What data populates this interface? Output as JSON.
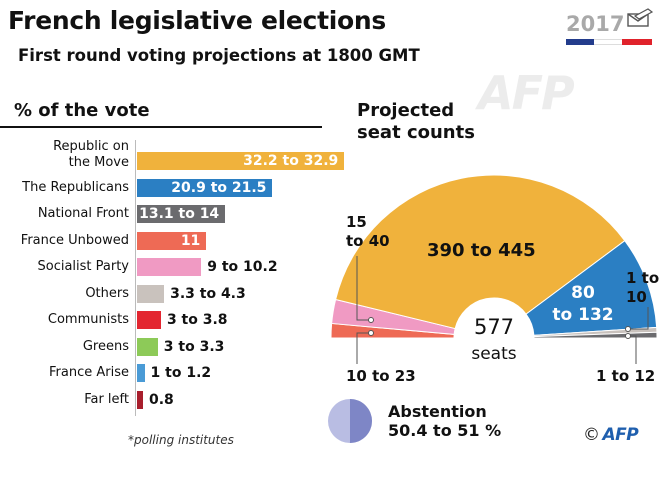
{
  "header": {
    "title": "French legislative elections",
    "subtitle": "First round voting projections at 1800 GMT",
    "logo_year": "2017",
    "watermark": "AFP"
  },
  "colors": {
    "orange": "#f0b23c",
    "blue": "#2b7fc3",
    "darkgrey": "#6b6b6e",
    "salmon": "#ee6a55",
    "pink": "#f09ac3",
    "lightgrey": "#c9c2bd",
    "red": "#e32630",
    "green": "#8dca58",
    "lightblue": "#4a9bd6",
    "darkred": "#a81e2c",
    "abstention": "#8088c9",
    "flag_blue": "#233c8c",
    "flag_red": "#e0222b"
  },
  "vote_section": {
    "title": "% of the vote",
    "footnote": "*polling institutes"
  },
  "seat_section": {
    "title_line1": "Projected",
    "title_line2": "seat counts",
    "total": "577",
    "unit": "seats"
  },
  "abstention": {
    "label": "Abstention",
    "value": "50.4 to 51 %",
    "low": 50.4,
    "high": 51
  },
  "credit": {
    "copyright": "©",
    "agency": "AFP"
  },
  "chart_data": [
    {
      "type": "bar",
      "title": "% of the vote",
      "categories": [
        "Republic on the Move",
        "The Republicans",
        "National Front",
        "France Unbowed",
        "Socialist Party",
        "Others",
        "Communists",
        "Greens",
        "France Arise",
        "Far left"
      ],
      "label_lines": [
        [
          "Republic on",
          "the Move"
        ],
        [
          "The Republicans"
        ],
        [
          "National Front"
        ],
        [
          "France Unbowed"
        ],
        [
          "Socialist Party"
        ],
        [
          "Others"
        ],
        [
          "Communists"
        ],
        [
          "Greens"
        ],
        [
          "France Arise"
        ],
        [
          "Far left"
        ]
      ],
      "series": [
        {
          "name": "",
          "low": [
            32.2,
            20.9,
            13.1,
            11,
            9,
            3.3,
            3,
            3,
            1,
            0.8
          ],
          "high": [
            32.9,
            21.5,
            14,
            11,
            10.2,
            4.3,
            3.8,
            3.3,
            1.2,
            0.8
          ]
        }
      ],
      "value_labels": [
        "32.2 to 32.9",
        "20.9 to 21.5",
        "13.1 to 14",
        "11",
        "9 to 10.2",
        "3.3 to 4.3",
        "3 to 3.8",
        "3 to 3.3",
        "1 to 1.2",
        "0.8"
      ],
      "bar_colors": [
        "orange",
        "blue",
        "darkgrey",
        "salmon",
        "pink",
        "lightgrey",
        "red",
        "green",
        "lightblue",
        "darkred"
      ]
    },
    {
      "type": "pie",
      "subtype": "semicircle",
      "title": "Projected seat counts",
      "total": 577,
      "slices": [
        {
          "low": 10,
          "high": 23,
          "label": "10 to 23",
          "color": "salmon"
        },
        {
          "low": 15,
          "high": 40,
          "label": "15 to 40",
          "color": "pink"
        },
        {
          "low": 390,
          "high": 445,
          "label": "390 to 445",
          "color": "orange"
        },
        {
          "low": 80,
          "high": 132,
          "label": "80 to 132",
          "color": "blue"
        },
        {
          "low": 1,
          "high": 10,
          "label": "1 to 10",
          "color": "lightgrey"
        },
        {
          "low": 1,
          "high": 12,
          "label": "1 to 12",
          "color": "darkgrey"
        }
      ]
    }
  ]
}
